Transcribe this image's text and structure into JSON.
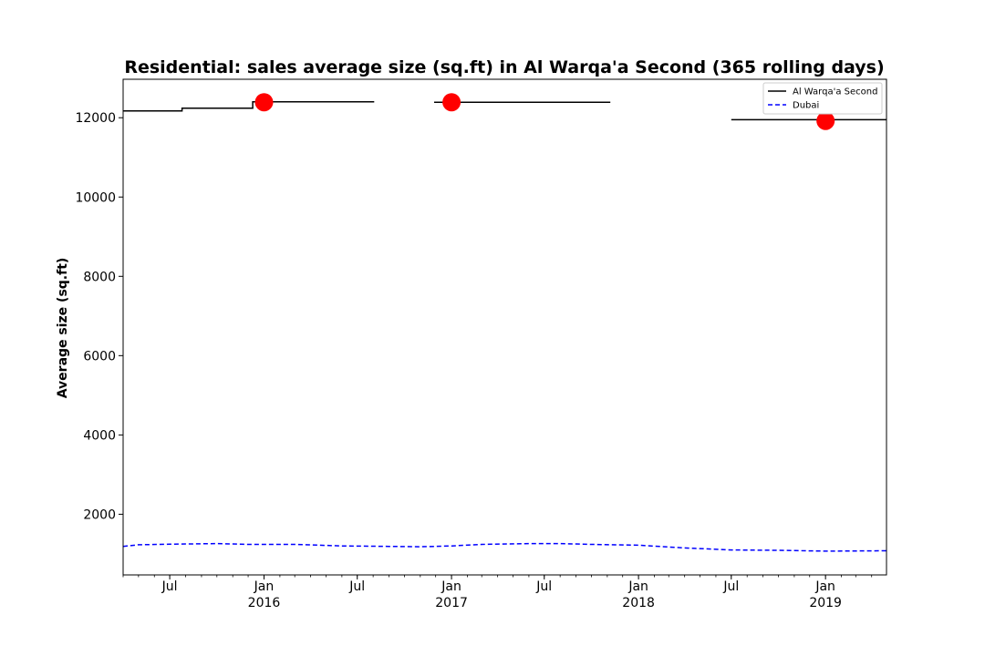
{
  "chart_data": {
    "type": "line",
    "title": "Residential: sales average size (sq.ft) in Al Warqa'a Second (365 rolling days)",
    "xlabel": "",
    "ylabel": "Average size (sq.ft)",
    "xlim": [
      "2015-04-01",
      "2019-04-30"
    ],
    "ylim": [
      470,
      12970
    ],
    "yticks": [
      2000,
      4000,
      6000,
      8000,
      10000,
      12000
    ],
    "xticks": [
      {
        "date": "2015-07-01",
        "label": "Jul",
        "year": ""
      },
      {
        "date": "2016-01-01",
        "label": "Jan",
        "year": "2016"
      },
      {
        "date": "2016-07-01",
        "label": "Jul",
        "year": ""
      },
      {
        "date": "2017-01-01",
        "label": "Jan",
        "year": "2017"
      },
      {
        "date": "2017-07-01",
        "label": "Jul",
        "year": ""
      },
      {
        "date": "2018-01-01",
        "label": "Jan",
        "year": "2018"
      },
      {
        "date": "2018-07-01",
        "label": "Jul",
        "year": ""
      },
      {
        "date": "2019-01-01",
        "label": "Jan",
        "year": "2019"
      }
    ],
    "legend_position": "top-right",
    "grid": false,
    "series": [
      {
        "name": "Al Warqa'a Second",
        "style": "solid",
        "color": "#000000",
        "segments": [
          [
            [
              "2015-04-01",
              12170
            ],
            [
              "2015-07-25",
              12170
            ],
            [
              "2015-07-25",
              12240
            ],
            [
              "2015-12-10",
              12240
            ],
            [
              "2015-12-10",
              12400
            ],
            [
              "2016-08-03",
              12400
            ]
          ],
          [
            [
              "2016-11-28",
              12390
            ],
            [
              "2017-11-07",
              12390
            ]
          ],
          [
            [
              "2018-07-01",
              11950
            ],
            [
              "2019-04-30",
              11950
            ]
          ]
        ]
      },
      {
        "name": "Dubai",
        "style": "dashed",
        "color": "#0000ff",
        "points": [
          [
            "2015-04-01",
            1190
          ],
          [
            "2015-05-01",
            1230
          ],
          [
            "2015-07-01",
            1245
          ],
          [
            "2015-10-01",
            1260
          ],
          [
            "2015-12-01",
            1240
          ],
          [
            "2016-03-01",
            1240
          ],
          [
            "2016-06-01",
            1200
          ],
          [
            "2016-09-01",
            1190
          ],
          [
            "2016-11-01",
            1180
          ],
          [
            "2017-01-01",
            1200
          ],
          [
            "2017-03-01",
            1240
          ],
          [
            "2017-06-01",
            1260
          ],
          [
            "2017-08-01",
            1260
          ],
          [
            "2017-10-01",
            1240
          ],
          [
            "2018-01-01",
            1220
          ],
          [
            "2018-04-01",
            1150
          ],
          [
            "2018-07-01",
            1100
          ],
          [
            "2018-10-01",
            1090
          ],
          [
            "2019-01-01",
            1070
          ],
          [
            "2019-03-01",
            1075
          ],
          [
            "2019-04-30",
            1080
          ]
        ]
      }
    ],
    "markers": [
      {
        "date": "2016-01-01",
        "value": 12390,
        "color": "#ff0000"
      },
      {
        "date": "2017-01-01",
        "value": 12390,
        "color": "#ff0000"
      },
      {
        "date": "2019-01-01",
        "value": 11920,
        "color": "#ff0000"
      }
    ]
  }
}
